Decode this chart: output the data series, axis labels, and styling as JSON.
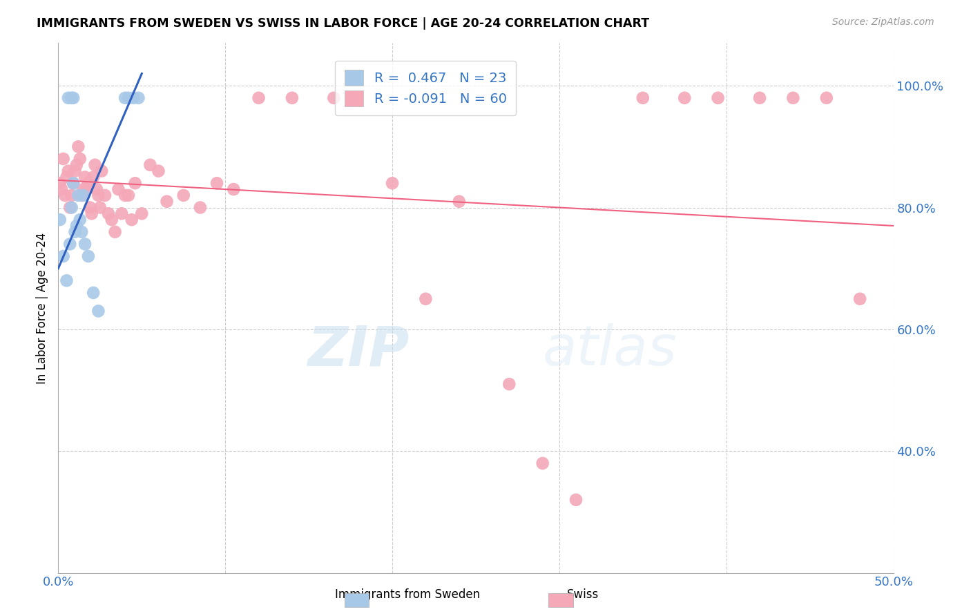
{
  "title": "IMMIGRANTS FROM SWEDEN VS SWISS IN LABOR FORCE | AGE 20-24 CORRELATION CHART",
  "source": "Source: ZipAtlas.com",
  "ylabel": "In Labor Force | Age 20-24",
  "x_tick_labels": [
    "0.0%",
    "",
    "",
    "",
    "",
    "50.0%"
  ],
  "x_ticks": [
    0.0,
    0.1,
    0.2,
    0.3,
    0.4,
    0.5
  ],
  "y_tick_labels": [
    "100.0%",
    "80.0%",
    "60.0%",
    "40.0%"
  ],
  "y_ticks": [
    1.0,
    0.8,
    0.6,
    0.4
  ],
  "xlim": [
    0.0,
    0.5
  ],
  "ylim": [
    0.2,
    1.07
  ],
  "legend_r_sweden": "0.467",
  "legend_n_sweden": "23",
  "legend_r_swiss": "-0.091",
  "legend_n_swiss": "60",
  "sweden_color": "#a8c8e8",
  "swiss_color": "#f4a8b8",
  "sweden_line_color": "#3060c0",
  "swiss_line_color": "#f06080",
  "sweden_scatter_x": [
    0.001,
    0.006,
    0.008,
    0.009,
    0.003,
    0.005,
    0.007,
    0.008,
    0.009,
    0.01,
    0.011,
    0.012,
    0.013,
    0.014,
    0.015,
    0.016,
    0.018,
    0.021,
    0.024,
    0.04,
    0.042,
    0.045,
    0.048
  ],
  "sweden_scatter_y": [
    0.78,
    0.98,
    0.98,
    0.98,
    0.72,
    0.68,
    0.74,
    0.8,
    0.84,
    0.76,
    0.77,
    0.82,
    0.78,
    0.76,
    0.82,
    0.74,
    0.72,
    0.66,
    0.63,
    0.98,
    0.98,
    0.98,
    0.98
  ],
  "swiss_scatter_x": [
    0.001,
    0.002,
    0.003,
    0.004,
    0.005,
    0.006,
    0.007,
    0.008,
    0.009,
    0.01,
    0.011,
    0.012,
    0.013,
    0.014,
    0.015,
    0.016,
    0.017,
    0.018,
    0.019,
    0.02,
    0.021,
    0.022,
    0.023,
    0.024,
    0.025,
    0.026,
    0.028,
    0.03,
    0.032,
    0.034,
    0.036,
    0.038,
    0.04,
    0.042,
    0.044,
    0.046,
    0.05,
    0.055,
    0.06,
    0.065,
    0.075,
    0.085,
    0.095,
    0.105,
    0.12,
    0.14,
    0.165,
    0.2,
    0.22,
    0.24,
    0.27,
    0.29,
    0.31,
    0.35,
    0.375,
    0.395,
    0.42,
    0.44,
    0.46,
    0.48
  ],
  "swiss_scatter_y": [
    0.84,
    0.83,
    0.88,
    0.82,
    0.85,
    0.86,
    0.8,
    0.82,
    0.84,
    0.86,
    0.87,
    0.9,
    0.88,
    0.82,
    0.83,
    0.85,
    0.83,
    0.84,
    0.8,
    0.79,
    0.85,
    0.87,
    0.83,
    0.82,
    0.8,
    0.86,
    0.82,
    0.79,
    0.78,
    0.76,
    0.83,
    0.79,
    0.82,
    0.82,
    0.78,
    0.84,
    0.79,
    0.87,
    0.86,
    0.81,
    0.82,
    0.8,
    0.84,
    0.83,
    0.98,
    0.98,
    0.98,
    0.84,
    0.65,
    0.81,
    0.51,
    0.38,
    0.32,
    0.98,
    0.98,
    0.98,
    0.98,
    0.98,
    0.98,
    0.65
  ],
  "sweden_trend_x": [
    0.0,
    0.05
  ],
  "sweden_trend_y": [
    0.7,
    1.02
  ],
  "swiss_trend_x": [
    0.0,
    0.5
  ],
  "swiss_trend_y": [
    0.845,
    0.77
  ]
}
